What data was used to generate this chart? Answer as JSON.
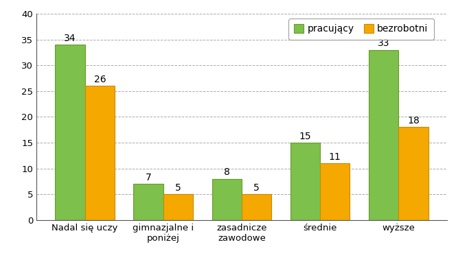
{
  "categories": [
    "Nadal się uczy",
    "gimnazjalne i\nponiżej",
    "zasadnicze\nzawodowe",
    "średnie",
    "wyższe"
  ],
  "pracujacy": [
    34,
    7,
    8,
    15,
    33
  ],
  "bezrobotni": [
    26,
    5,
    5,
    11,
    18
  ],
  "bar_color_pracujacy": "#7DC04B",
  "bar_color_bezrobotni": "#F5A800",
  "bar_edge_color": "#6B9A2A",
  "bar_edge_color_orange": "#CC8800",
  "ylim": [
    0,
    40
  ],
  "yticks": [
    0,
    5,
    10,
    15,
    20,
    25,
    30,
    35,
    40
  ],
  "legend_pracujacy": "pracujący",
  "legend_bezrobotni": "bezrobotni",
  "bar_width": 0.38,
  "background_color": "#FFFFFF",
  "grid_color": "#AAAAAA",
  "font_size_labels": 10,
  "font_size_ticks": 9.5,
  "font_size_legend": 10
}
